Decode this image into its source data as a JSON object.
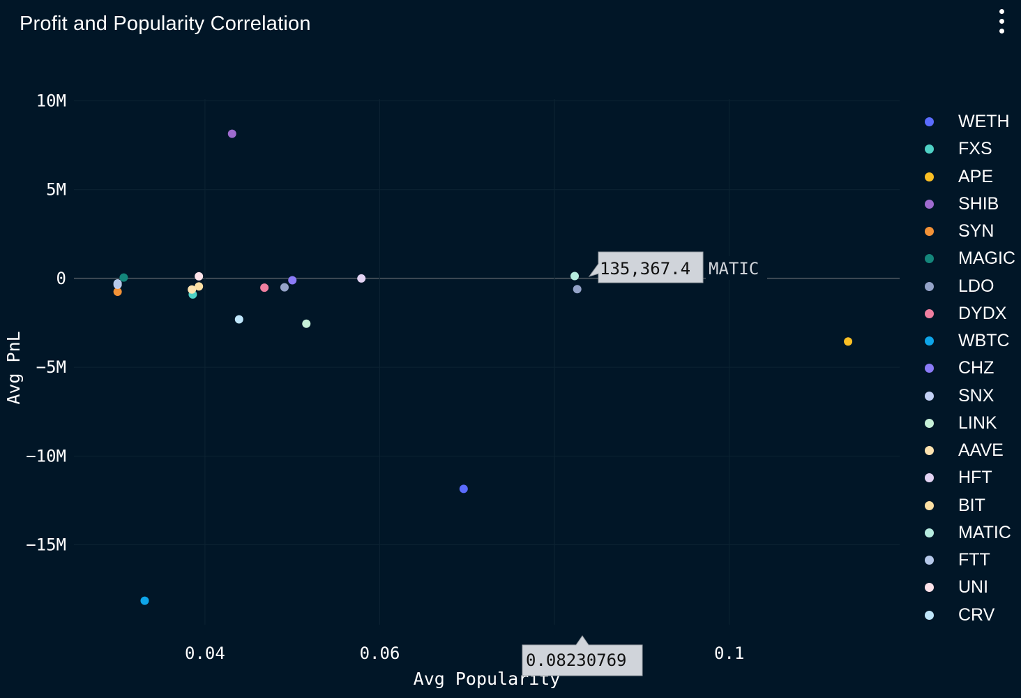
{
  "header": {
    "title": "Profit and Popularity Correlation"
  },
  "menu": {
    "icon": "kebab-menu-icon"
  },
  "tooltip": {
    "y_value": "135,367.4",
    "series": "MATIC",
    "x_value": "0.08230769"
  },
  "chart_data": {
    "type": "scatter",
    "title": "Profit and Popularity Correlation",
    "xlabel": "Avg Popularity",
    "ylabel": "Avg PnL",
    "xlim": [
      0.025,
      0.1195
    ],
    "ylim": [
      -19500000,
      10100000
    ],
    "x_ticks": [
      {
        "value": 0.04,
        "label": "0.04"
      },
      {
        "value": 0.06,
        "label": "0.06"
      },
      {
        "value": 0.08,
        "label": "0.08"
      },
      {
        "value": 0.1,
        "label": "0.1"
      }
    ],
    "y_ticks": [
      {
        "value": 10000000,
        "label": "10M"
      },
      {
        "value": 5000000,
        "label": "5M"
      },
      {
        "value": 0,
        "label": "0"
      },
      {
        "value": -5000000,
        "label": "−5M"
      },
      {
        "value": -10000000,
        "label": "−10M"
      },
      {
        "value": -15000000,
        "label": "−15M"
      }
    ],
    "grid": true,
    "legend_position": "right",
    "series": [
      {
        "name": "WETH",
        "color": "#5b6cff",
        "x": [
          0.0696
        ],
        "y": [
          -11850000
        ]
      },
      {
        "name": "FXS",
        "color": "#4fd1c5",
        "x": [
          0.0386
        ],
        "y": [
          -900000
        ]
      },
      {
        "name": "APE",
        "color": "#fbbf24",
        "x": [
          0.1136
        ],
        "y": [
          -3550000
        ]
      },
      {
        "name": "SHIB",
        "color": "#9f6bcf",
        "x": [
          0.0431
        ],
        "y": [
          8150000
        ]
      },
      {
        "name": "SYN",
        "color": "#f39237",
        "x": [
          0.03
        ],
        "y": [
          -750000
        ]
      },
      {
        "name": "MAGIC",
        "color": "#14867b",
        "x": [
          0.0307
        ],
        "y": [
          50000
        ]
      },
      {
        "name": "LDO",
        "color": "#94a3c8",
        "x": [
          0.0491,
          0.0826
        ],
        "y": [
          -500000,
          -600000
        ]
      },
      {
        "name": "DYDX",
        "color": "#f07fa0",
        "x": [
          0.0468
        ],
        "y": [
          -520000
        ]
      },
      {
        "name": "WBTC",
        "color": "#0ea5e9",
        "x": [
          0.0331
        ],
        "y": [
          -18150000
        ]
      },
      {
        "name": "CHZ",
        "color": "#8b7bf7",
        "x": [
          0.05
        ],
        "y": [
          -100000
        ]
      },
      {
        "name": "SNX",
        "color": "#c3d1f5",
        "x": [
          0.03
        ],
        "y": [
          -350000
        ]
      },
      {
        "name": "LINK",
        "color": "#c6f0d8",
        "x": [
          0.0516
        ],
        "y": [
          -2550000
        ]
      },
      {
        "name": "AAVE",
        "color": "#fde3b0",
        "x": [
          0.0385
        ],
        "y": [
          -620000
        ]
      },
      {
        "name": "HFT",
        "color": "#e3d3f3",
        "x": [
          0.0579
        ],
        "y": [
          0
        ]
      },
      {
        "name": "BIT",
        "color": "#fde0a4",
        "x": [
          0.0393
        ],
        "y": [
          -450000
        ]
      },
      {
        "name": "MATIC",
        "color": "#b6ece0",
        "x": [
          0.08230769
        ],
        "y": [
          135367.4
        ]
      },
      {
        "name": "FTT",
        "color": "#b6c9ea",
        "x": [
          0.03
        ],
        "y": [
          -280000
        ]
      },
      {
        "name": "UNI",
        "color": "#fde3ea",
        "x": [
          0.0393
        ],
        "y": [
          120000
        ]
      },
      {
        "name": "CRV",
        "color": "#bfe6fb",
        "x": [
          0.0439
        ],
        "y": [
          -2300000
        ]
      }
    ]
  }
}
